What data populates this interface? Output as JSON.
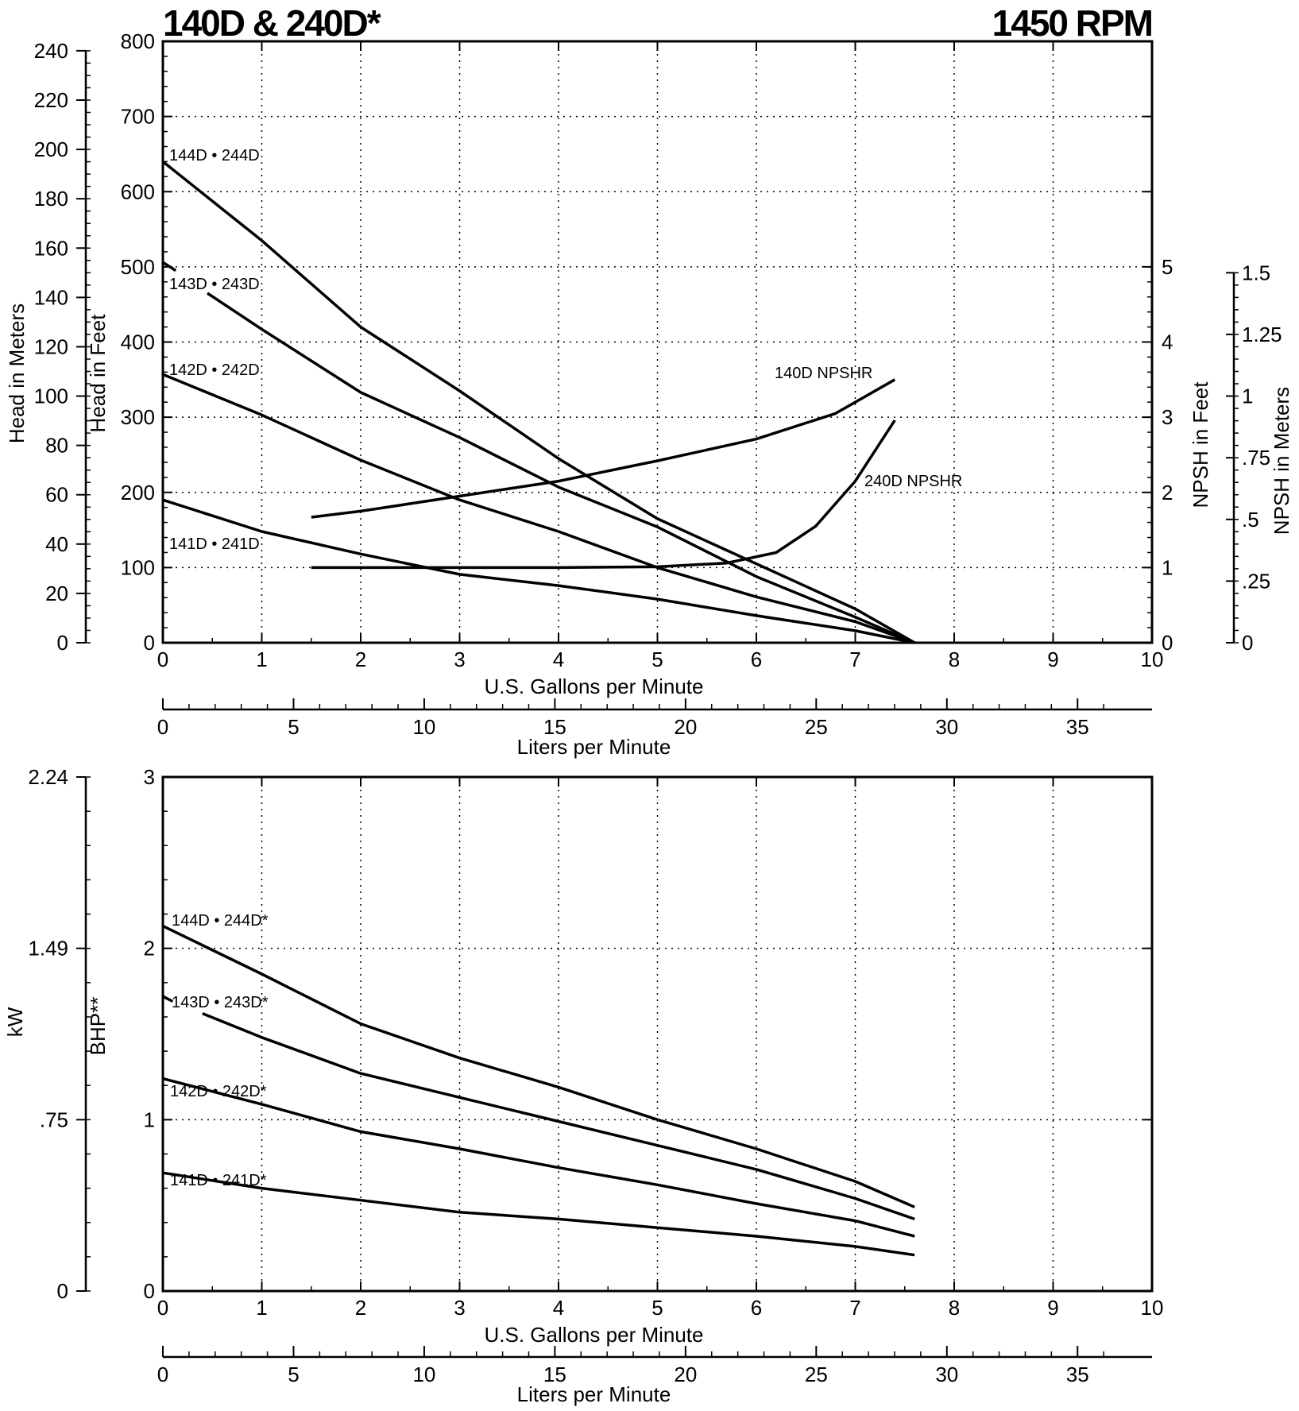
{
  "header": {
    "title_left": "140D & 240D*",
    "title_right": "1450 RPM"
  },
  "chart_data": [
    {
      "type": "line",
      "title": "140D & 240D*",
      "subtitle": "1450 RPM",
      "xlabel": "U.S. Gallons per Minute",
      "xlabel2": "Liters per Minute",
      "ylabel": "Head in Feet",
      "ylabel_meters": "Head in Meters",
      "ylabel_right": "NPSH in Feet",
      "ylabel_right2": "NPSH in Meters",
      "xlim": [
        0,
        10
      ],
      "ylim": [
        0,
        800
      ],
      "x_ticks": [
        "0",
        "1",
        "2",
        "3",
        "4",
        "5",
        "6",
        "7",
        "8",
        "9",
        "10"
      ],
      "y_ticks": [
        "0",
        "100",
        "200",
        "300",
        "400",
        "500",
        "600",
        "700",
        "800"
      ],
      "lpm_ticks": [
        "0",
        "5",
        "10",
        "15",
        "20",
        "25",
        "30",
        "35"
      ],
      "meter_ticks": [
        "0",
        "20",
        "40",
        "60",
        "80",
        "100",
        "120",
        "140",
        "160",
        "180",
        "200",
        "220",
        "240"
      ],
      "npsh_ft_ticks": [
        "0",
        "1",
        "2",
        "3",
        "4",
        "5"
      ],
      "npsh_m_ticks": [
        "0",
        ".25",
        ".5",
        ".75",
        "1",
        "1.25",
        "1.5"
      ],
      "grid": true,
      "series": [
        {
          "name": "144D • 244D",
          "axis": "head_ft",
          "x": [
            0,
            1,
            2,
            3,
            4,
            5,
            6,
            7,
            7.6
          ],
          "y": [
            640,
            535,
            420,
            335,
            245,
            165,
            105,
            45,
            0
          ]
        },
        {
          "name": "143D • 243D",
          "axis": "head_ft",
          "x": [
            0,
            0.13,
            null,
            0.45,
            1,
            2,
            3,
            4,
            5,
            6,
            7,
            7.6
          ],
          "y": [
            506,
            495,
            null,
            465,
            417,
            333,
            273,
            207,
            154,
            88,
            34,
            0
          ]
        },
        {
          "name": "142D • 242D",
          "axis": "head_ft",
          "x": [
            0,
            1,
            2,
            3,
            4,
            5,
            6,
            7,
            7.6
          ],
          "y": [
            357,
            303,
            243,
            190,
            148,
            100,
            61,
            28,
            0
          ]
        },
        {
          "name": "141D • 241D",
          "axis": "head_ft",
          "x": [
            0,
            1,
            2,
            3,
            4,
            5,
            6,
            7,
            7.6
          ],
          "y": [
            190,
            148,
            118,
            91,
            76,
            58,
            36,
            16,
            0
          ]
        },
        {
          "name": "140D NPSHR",
          "axis": "npsh_ft",
          "x": [
            1.5,
            2,
            3,
            4,
            5,
            6,
            6.8,
            7.4
          ],
          "y": [
            1.67,
            1.75,
            1.95,
            2.15,
            2.42,
            2.71,
            3.05,
            3.5
          ]
        },
        {
          "name": "240D NPSHR",
          "axis": "npsh_ft",
          "x": [
            1.5,
            3,
            4,
            5,
            5.7,
            6.2,
            6.6,
            7,
            7.4
          ],
          "y": [
            1.0,
            1.0,
            1.0,
            1.01,
            1.06,
            1.2,
            1.55,
            2.15,
            2.96
          ]
        }
      ]
    },
    {
      "type": "line",
      "xlabel": "U.S. Gallons per Minute",
      "xlabel2": "Liters per Minute",
      "ylabel": "BHP**",
      "ylabel_kw": "kW",
      "xlim": [
        0,
        10
      ],
      "ylim": [
        0,
        3
      ],
      "x_ticks": [
        "0",
        "1",
        "2",
        "3",
        "4",
        "5",
        "6",
        "7",
        "8",
        "9",
        "10"
      ],
      "y_ticks": [
        "0",
        "1",
        "2",
        "3"
      ],
      "kw_ticks": [
        "0",
        ".75",
        "1.49",
        "2.24"
      ],
      "lpm_ticks": [
        "0",
        "5",
        "10",
        "15",
        "20",
        "25",
        "30",
        "35"
      ],
      "grid": true,
      "series": [
        {
          "name": "144D • 244D*",
          "x": [
            0,
            1,
            2,
            3,
            4,
            5,
            6,
            7,
            7.6
          ],
          "y": [
            2.13,
            1.85,
            1.56,
            1.36,
            1.19,
            1.0,
            0.83,
            0.64,
            0.49
          ]
        },
        {
          "name": "143D • 243D*",
          "x": [
            0,
            0.1,
            null,
            0.4,
            1,
            2,
            3,
            4,
            5,
            6,
            7,
            7.6
          ],
          "y": [
            1.72,
            1.69,
            null,
            1.62,
            1.48,
            1.27,
            1.13,
            0.99,
            0.85,
            0.71,
            0.54,
            0.42
          ]
        },
        {
          "name": "142D • 242D*",
          "x": [
            0,
            1,
            2,
            3,
            4,
            5,
            6,
            7,
            7.6
          ],
          "y": [
            1.24,
            1.09,
            0.93,
            0.83,
            0.72,
            0.62,
            0.51,
            0.41,
            0.32
          ]
        },
        {
          "name": "141D • 241D*",
          "x": [
            0,
            1,
            2,
            3,
            4,
            5,
            6,
            7,
            7.6
          ],
          "y": [
            0.69,
            0.6,
            0.53,
            0.46,
            0.42,
            0.37,
            0.32,
            0.26,
            0.21
          ]
        }
      ]
    }
  ]
}
